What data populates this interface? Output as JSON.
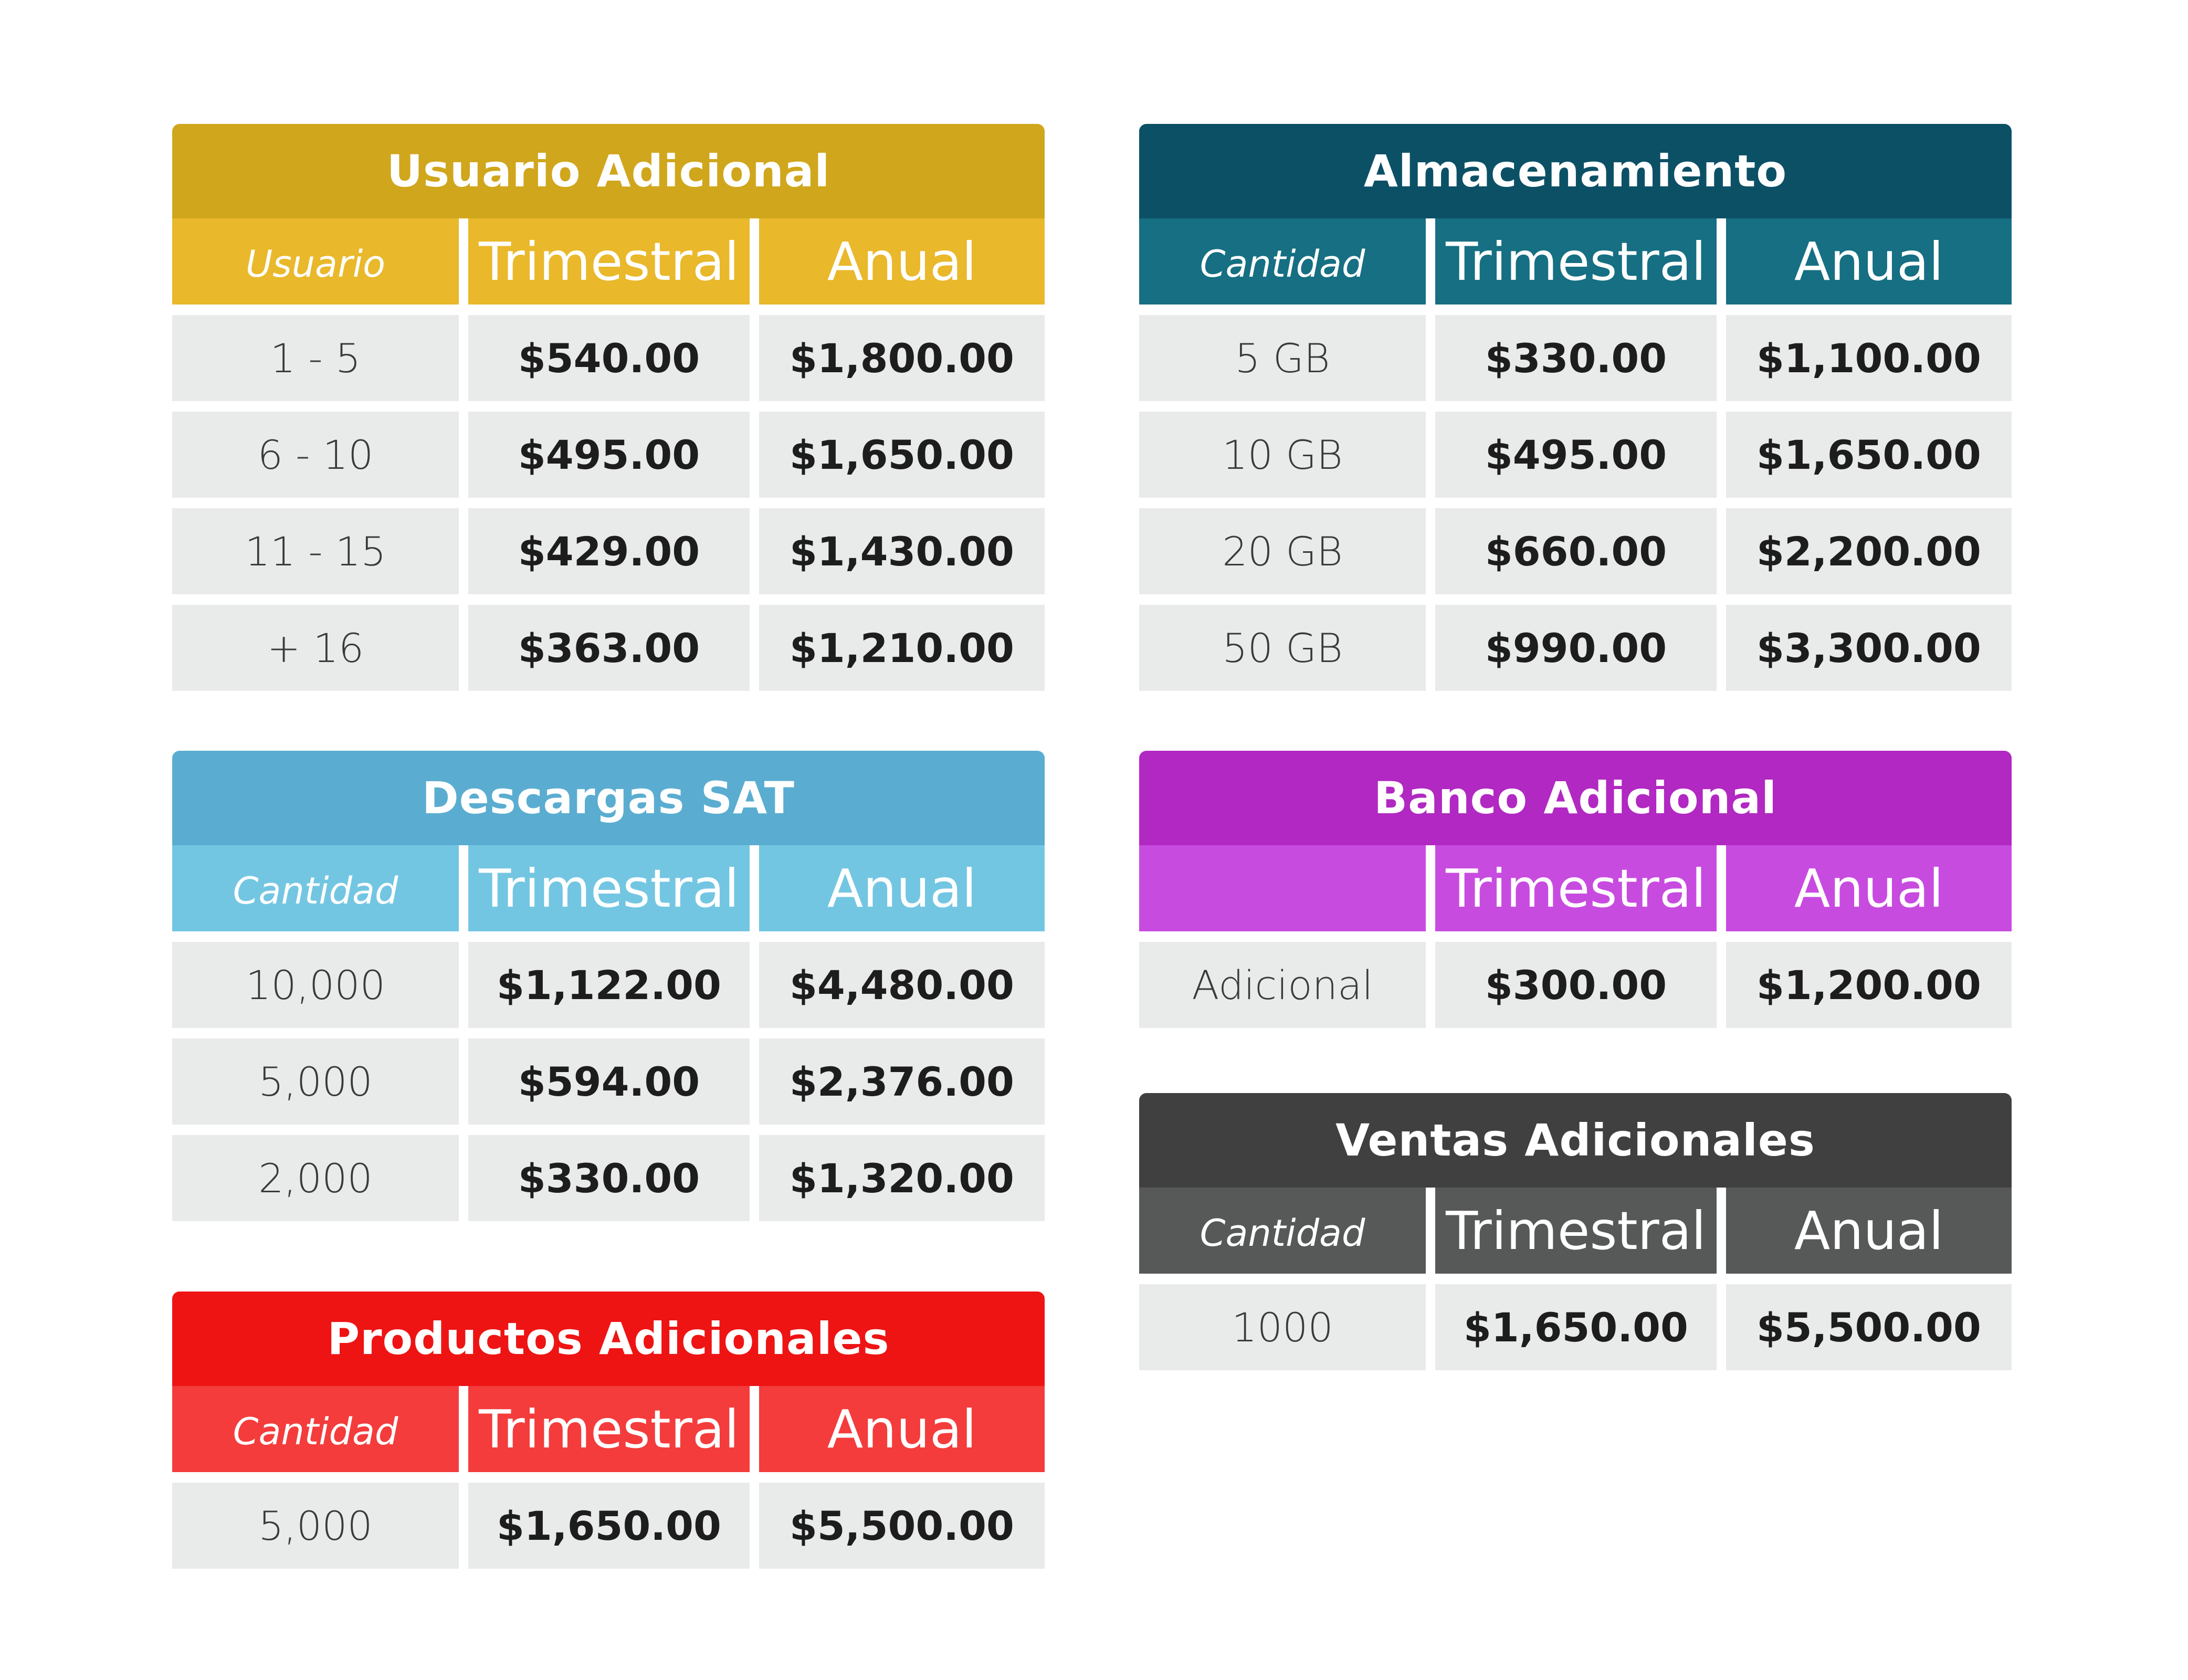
{
  "column_headers": {
    "quarterly": "Trimestral",
    "annual": "Anual"
  },
  "tables": {
    "usuario": {
      "title": "Usuario Adicional",
      "label_header": "Usuario",
      "colors": {
        "title": "#d0a61c",
        "header": "#e9b82b"
      },
      "rows": [
        {
          "label": "1 - 5",
          "quarterly": "$540.00",
          "annual": "$1,800.00"
        },
        {
          "label": "6 - 10",
          "quarterly": "$495.00",
          "annual": "$1,650.00"
        },
        {
          "label": "11 - 15",
          "quarterly": "$429.00",
          "annual": "$1,430.00"
        },
        {
          "label": "+ 16",
          "quarterly": "$363.00",
          "annual": "$1,210.00"
        }
      ]
    },
    "almacenamiento": {
      "title": "Almacenamiento",
      "label_header": "Cantidad",
      "colors": {
        "title": "#0c5066",
        "header": "#166f82"
      },
      "rows": [
        {
          "label": "5 GB",
          "quarterly": "$330.00",
          "annual": "$1,100.00"
        },
        {
          "label": "10 GB",
          "quarterly": "$495.00",
          "annual": "$1,650.00"
        },
        {
          "label": "20 GB",
          "quarterly": "$660.00",
          "annual": "$2,200.00"
        },
        {
          "label": "50 GB",
          "quarterly": "$990.00",
          "annual": "$3,300.00"
        }
      ]
    },
    "descargas": {
      "title": "Descargas SAT",
      "label_header": "Cantidad",
      "colors": {
        "title": "#5aadd0",
        "header": "#73c6e2"
      },
      "rows": [
        {
          "label": "10,000",
          "quarterly": "$1,122.00",
          "annual": "$4,480.00"
        },
        {
          "label": "5,000",
          "quarterly": "$594.00",
          "annual": "$2,376.00"
        },
        {
          "label": "2,000",
          "quarterly": "$330.00",
          "annual": "$1,320.00"
        }
      ]
    },
    "banco": {
      "title": "Banco Adicional",
      "label_header": "",
      "colors": {
        "title": "#b128c2",
        "header": "#c84be0"
      },
      "rows": [
        {
          "label": "Adicional",
          "quarterly": "$300.00",
          "annual": "$1,200.00"
        }
      ]
    },
    "ventas": {
      "title": "Ventas Adicionales",
      "label_header": "Cantidad",
      "colors": {
        "title": "#404040",
        "header": "#575959"
      },
      "rows": [
        {
          "label": "1000",
          "quarterly": "$1,650.00",
          "annual": "$5,500.00"
        }
      ]
    },
    "productos": {
      "title": "Productos Adicionales",
      "label_header": "Cantidad",
      "colors": {
        "title": "#ee1414",
        "header": "#f43c3c"
      },
      "rows": [
        {
          "label": "5,000",
          "quarterly": "$1,650.00",
          "annual": "$5,500.00"
        }
      ]
    }
  }
}
